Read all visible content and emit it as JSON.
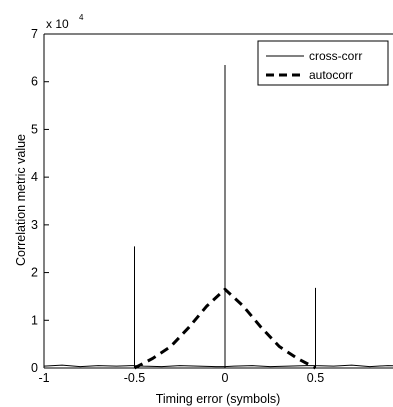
{
  "chart_data": {
    "type": "line",
    "xlabel": "Timing error (symbols)",
    "ylabel": "Correlation metric value",
    "scale_label": "x 10",
    "scale_exponent": "4",
    "xlim": [
      -1,
      1
    ],
    "ylim": [
      0,
      7
    ],
    "xticks": [
      -1,
      -0.5,
      0,
      0.5
    ],
    "xtick_labels": [
      "-1",
      "-0.5",
      "0",
      "0.5"
    ],
    "yticks": [
      0,
      1,
      2,
      3,
      4,
      5,
      6,
      7
    ],
    "ytick_labels": [
      "0",
      "1",
      "2",
      "3",
      "4",
      "5",
      "6",
      "7"
    ],
    "grid": false,
    "legend_position": "top-right",
    "series": [
      {
        "name": "cross-corr",
        "style": "solid",
        "color": "#000000",
        "points": [
          [
            -1.0,
            0.04
          ],
          [
            -0.9,
            0.06
          ],
          [
            -0.8,
            0.03
          ],
          [
            -0.7,
            0.05
          ],
          [
            -0.6,
            0.04
          ],
          [
            -0.52,
            0.05
          ],
          [
            -0.5,
            0.05
          ],
          [
            -0.5,
            2.55
          ],
          [
            -0.5,
            0.05
          ],
          [
            -0.45,
            0.04
          ],
          [
            -0.35,
            0.03
          ],
          [
            -0.25,
            0.05
          ],
          [
            -0.15,
            0.04
          ],
          [
            -0.05,
            0.03
          ],
          [
            0.0,
            0.03
          ],
          [
            0.0,
            6.35
          ],
          [
            0.0,
            0.03
          ],
          [
            0.05,
            0.04
          ],
          [
            0.15,
            0.05
          ],
          [
            0.25,
            0.03
          ],
          [
            0.35,
            0.04
          ],
          [
            0.45,
            0.05
          ],
          [
            0.5,
            0.05
          ],
          [
            0.5,
            1.68
          ],
          [
            0.5,
            0.05
          ],
          [
            0.6,
            0.04
          ],
          [
            0.7,
            0.06
          ],
          [
            0.8,
            0.03
          ],
          [
            0.9,
            0.05
          ],
          [
            0.98,
            0.04
          ]
        ]
      },
      {
        "name": "autocorr",
        "style": "dashed",
        "color": "#000000",
        "points": [
          [
            -0.5,
            0.0
          ],
          [
            -0.4,
            0.2
          ],
          [
            -0.3,
            0.45
          ],
          [
            -0.2,
            0.85
          ],
          [
            -0.1,
            1.3
          ],
          [
            0.0,
            1.65
          ],
          [
            0.1,
            1.3
          ],
          [
            0.2,
            0.85
          ],
          [
            0.3,
            0.45
          ],
          [
            0.4,
            0.2
          ],
          [
            0.5,
            0.0
          ]
        ]
      }
    ]
  }
}
